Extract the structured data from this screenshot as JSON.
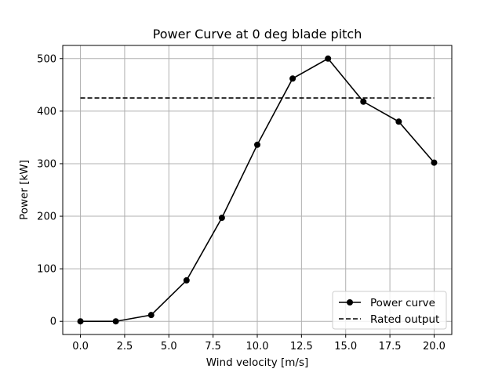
{
  "chart_data": {
    "type": "line",
    "title": "Power Curve at 0 deg blade pitch",
    "xlabel": "Wind velocity [m/s]",
    "ylabel": "Power [kW]",
    "xlim": [
      -1,
      21
    ],
    "ylim": [
      -25,
      525
    ],
    "x_ticks": [
      0.0,
      2.5,
      5.0,
      7.5,
      10.0,
      12.5,
      15.0,
      17.5,
      20.0
    ],
    "x_tick_labels": [
      "0.0",
      "2.5",
      "5.0",
      "7.5",
      "10.0",
      "12.5",
      "15.0",
      "17.5",
      "20.0"
    ],
    "y_ticks": [
      0,
      100,
      200,
      300,
      400,
      500
    ],
    "y_tick_labels": [
      "0",
      "100",
      "200",
      "300",
      "400",
      "500"
    ],
    "grid": true,
    "legend_position": "lower-right",
    "series": [
      {
        "name": "Power curve",
        "style": "solid-with-markers",
        "color": "#000000",
        "x": [
          0,
          2,
          4,
          6,
          8,
          10,
          12,
          14,
          16,
          18,
          20
        ],
        "y": [
          0,
          0,
          12,
          78,
          197,
          336,
          462,
          500,
          418,
          380,
          302
        ]
      },
      {
        "name": "Rated output",
        "style": "dashed",
        "color": "#000000",
        "x": [
          0,
          20
        ],
        "y": [
          425,
          425
        ]
      }
    ]
  }
}
